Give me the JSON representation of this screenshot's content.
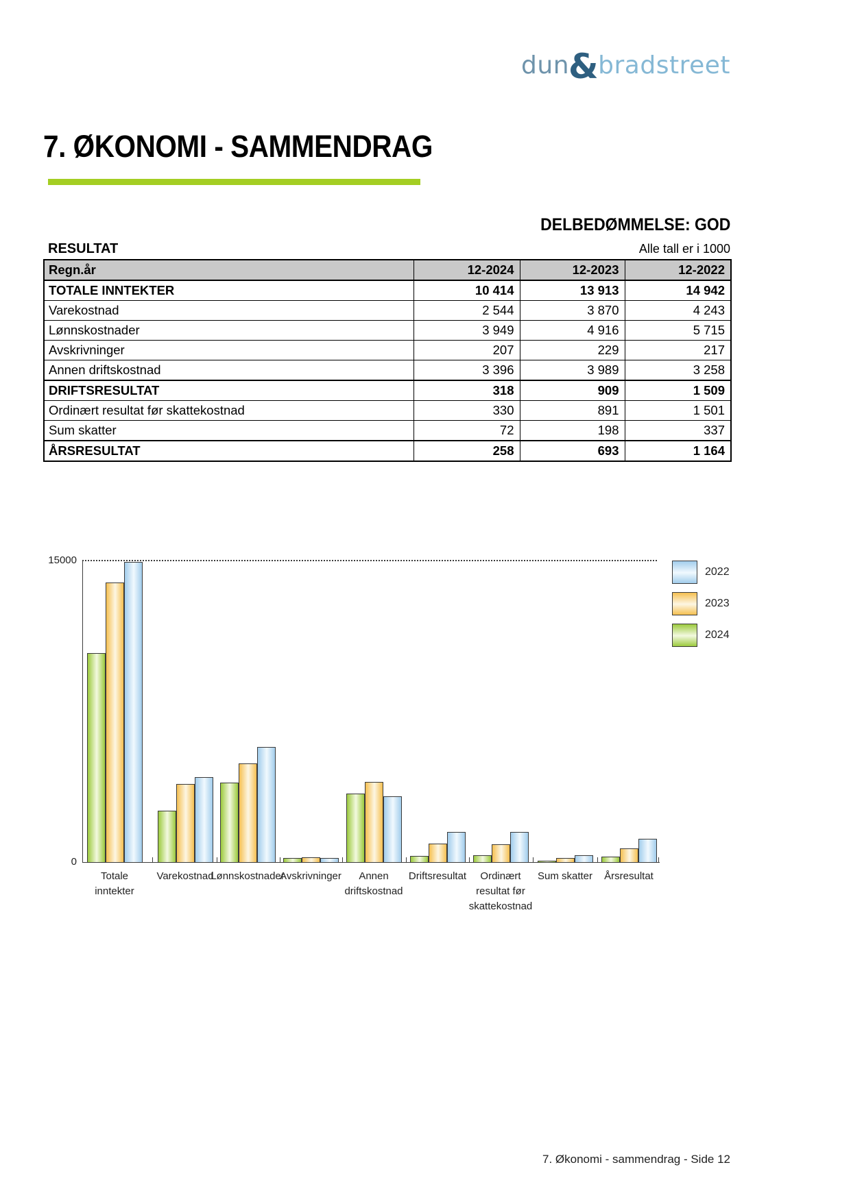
{
  "logo": {
    "dun": "dun",
    "ampersand": "&",
    "bradstreet": "bradstreet"
  },
  "page": {
    "title": "7. ØKONOMI - SAMMENDRAG",
    "assessment": "DELBEDØMMELSE: GOD",
    "section_label": "RESULTAT",
    "units_note": "Alle tall er i 1000",
    "footer": "7. Økonomi - sammendrag - Side 12"
  },
  "accent_color": "#a4ce23",
  "table": {
    "headers": [
      "Regn.år",
      "12-2024",
      "12-2023",
      "12-2022"
    ],
    "rows": [
      {
        "label": "TOTALE INNTEKTER",
        "values": [
          "10 414",
          "13 913",
          "14 942"
        ],
        "bold": true
      },
      {
        "label": "Varekostnad",
        "values": [
          "2 544",
          "3 870",
          "4 243"
        ],
        "bold": false
      },
      {
        "label": "Lønnskostnader",
        "values": [
          "3 949",
          "4 916",
          "5 715"
        ],
        "bold": false
      },
      {
        "label": "Avskrivninger",
        "values": [
          "207",
          "229",
          "217"
        ],
        "bold": false
      },
      {
        "label": "Annen driftskostnad",
        "values": [
          "3 396",
          "3 989",
          "3 258"
        ],
        "bold": false
      },
      {
        "label": "DRIFTSRESULTAT",
        "values": [
          "318",
          "909",
          "1 509"
        ],
        "bold": true
      },
      {
        "label": "Ordinært resultat før skattekostnad",
        "values": [
          "330",
          "891",
          "1 501"
        ],
        "bold": false
      },
      {
        "label": "Sum skatter",
        "values": [
          "72",
          "198",
          "337"
        ],
        "bold": false
      },
      {
        "label": "ÅRSRESULTAT",
        "values": [
          "258",
          "693",
          "1 164"
        ],
        "bold": true
      }
    ]
  },
  "chart_data": {
    "type": "bar",
    "title": "",
    "xlabel": "",
    "ylabel": "",
    "ylim": [
      0,
      15000
    ],
    "yticks": [
      {
        "value": 15000,
        "label": "15000"
      },
      {
        "value": 0,
        "label": "0"
      }
    ],
    "grid": "dotted line at 15000",
    "legend_position": "right",
    "categories": [
      "Totale inntekter",
      "Varekostnad",
      "Lønnskostnader",
      "Avskrivninger",
      "Annen driftskostnad",
      "Driftsresultat",
      "Ordinært resultat før skattekostnad",
      "Sum skatter",
      "Årsresultat"
    ],
    "category_label_lines": [
      [
        "Totale",
        "inntekter"
      ],
      [
        "Varekostnad"
      ],
      [
        "Lønnskostnader"
      ],
      [
        "Avskrivninger"
      ],
      [
        "Annen",
        "driftskostnad"
      ],
      [
        "Driftsresultat"
      ],
      [
        "Ordinært",
        "resultat før",
        "skattekostnad"
      ],
      [
        "Sum skatter"
      ],
      [
        "Årsresultat"
      ]
    ],
    "series": [
      {
        "name": "2022",
        "color": "#a2cdec",
        "color_light": "#f1f9fe",
        "values": [
          14942,
          4243,
          5715,
          217,
          3258,
          1509,
          1501,
          337,
          1164
        ]
      },
      {
        "name": "2023",
        "color": "#f5c051",
        "color_light": "#fdf6e3",
        "values": [
          13913,
          3870,
          4916,
          229,
          3989,
          909,
          891,
          198,
          693
        ]
      },
      {
        "name": "2024",
        "color": "#9cca3e",
        "color_light": "#f3f9e0",
        "values": [
          10414,
          2544,
          3949,
          207,
          3396,
          318,
          330,
          72,
          258
        ]
      }
    ],
    "bar_order_left_to_right": [
      "2024",
      "2023",
      "2022"
    ]
  }
}
